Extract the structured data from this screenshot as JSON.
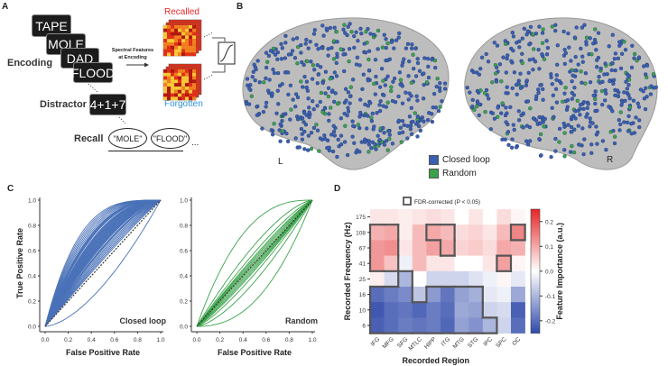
{
  "panel_a": {
    "label": "A",
    "words": [
      "TAPE",
      "MOLE",
      "DAD",
      "FLOOD"
    ],
    "encoding_label": "Encoding",
    "distractor_label": "Distractor",
    "distractor_value": "4+1+7",
    "recall_label": "Recall",
    "recall_responses": [
      "\"MOLE\"",
      "\"FLOOD\""
    ],
    "ellipsis": "...",
    "spectral_line1": "Spectral Features",
    "spectral_line2": "at Encoding",
    "recalled_label": "Recalled",
    "forgotten_label": "Forgotten",
    "colors": {
      "recalled": "#e8262a",
      "forgotten": "#2a8fd6"
    }
  },
  "panel_b": {
    "label": "B",
    "legend": [
      {
        "label": "Closed loop",
        "color": "#3a5fb0"
      },
      {
        "label": "Random",
        "color": "#3aa34a"
      }
    ],
    "left_hemisphere": "L",
    "right_hemisphere": "R"
  },
  "panel_c": {
    "label": "C"
  },
  "panel_d": {
    "label": "D",
    "legend_label": "FDR-corrected (P < 0.05)"
  },
  "chart_data": [
    {
      "type": "line",
      "title": "Closed loop",
      "xlabel": "False Positive Rate",
      "ylabel": "True Positive Rate",
      "xlim": [
        0,
        1
      ],
      "ylim": [
        0,
        1
      ],
      "ticks": [
        "0.0",
        "0.2",
        "0.4",
        "0.6",
        "0.8",
        "1.0"
      ],
      "color": "#4a72b8",
      "auc": [
        0.38,
        0.52,
        0.53,
        0.54,
        0.55,
        0.56,
        0.57,
        0.58,
        0.585,
        0.59,
        0.6,
        0.605,
        0.61,
        0.615,
        0.62,
        0.625,
        0.63,
        0.635,
        0.64,
        0.645,
        0.65,
        0.655,
        0.66,
        0.665,
        0.67,
        0.675,
        0.68,
        0.685,
        0.69,
        0.7,
        0.705,
        0.71,
        0.715,
        0.72,
        0.73,
        0.74,
        0.75,
        0.76,
        0.77,
        0.78
      ],
      "chance_line": true
    },
    {
      "type": "line",
      "title": "Random",
      "xlabel": "False Positive Rate",
      "ylabel": "",
      "xlim": [
        0,
        1
      ],
      "ylim": [
        0,
        1
      ],
      "ticks": [
        "0.0",
        "0.2",
        "0.4",
        "0.6",
        "0.8",
        "1.0"
      ],
      "color": "#3aa34a",
      "auc": [
        0.3,
        0.4,
        0.44,
        0.46,
        0.47,
        0.48,
        0.49,
        0.5,
        0.51,
        0.52,
        0.53,
        0.54,
        0.56,
        0.6,
        0.72
      ],
      "chance_line": true
    },
    {
      "type": "heatmap",
      "xlabel": "Recorded Region",
      "ylabel": "Recorded Frequency (Hz)",
      "colorbar_label": "Feature Importance (a.u.)",
      "colorbar_ticks": [
        "0.2",
        "0.1",
        "0.0",
        "-0.1",
        "-0.2"
      ],
      "clim": [
        -0.25,
        0.25
      ],
      "x": [
        "IFG",
        "MFG",
        "SFG",
        "MTLC",
        "HIPP",
        "ITG",
        "MTG",
        "STG",
        "IPC",
        "SPC",
        "OC"
      ],
      "y": [
        "175",
        "108",
        "67",
        "41",
        "25",
        "16",
        "10",
        "6"
      ],
      "values": [
        [
          0.03,
          0.03,
          0.02,
          0.03,
          0.04,
          0.03,
          0.0,
          0.03,
          0.0,
          0.04,
          0.01
        ],
        [
          0.09,
          0.1,
          0.02,
          0.08,
          0.1,
          0.08,
          0.04,
          0.05,
          0.03,
          0.08,
          0.14
        ],
        [
          0.12,
          0.13,
          0.03,
          0.08,
          0.11,
          0.1,
          0.05,
          0.06,
          0.04,
          0.1,
          0.09
        ],
        [
          0.12,
          0.07,
          -0.02,
          0.08,
          0.03,
          0.03,
          0.0,
          0.0,
          0.03,
          0.11,
          0.01
        ],
        [
          0.02,
          -0.05,
          -0.1,
          0.0,
          -0.06,
          -0.06,
          -0.06,
          -0.04,
          -0.02,
          0.01,
          -0.03
        ],
        [
          -0.2,
          -0.18,
          -0.16,
          -0.08,
          -0.14,
          -0.19,
          -0.13,
          -0.11,
          -0.03,
          -0.02,
          -0.12
        ],
        [
          -0.23,
          -0.2,
          -0.19,
          -0.21,
          -0.18,
          -0.2,
          -0.12,
          -0.13,
          -0.06,
          -0.05,
          -0.22
        ],
        [
          -0.22,
          -0.2,
          -0.18,
          -0.19,
          -0.18,
          -0.21,
          -0.13,
          -0.15,
          -0.1,
          -0.06,
          -0.2
        ]
      ],
      "significant": [
        [
          0,
          0,
          0,
          0,
          0,
          0,
          0,
          0,
          0,
          0,
          0
        ],
        [
          1,
          1,
          0,
          0,
          1,
          1,
          0,
          0,
          0,
          0,
          1
        ],
        [
          1,
          1,
          0,
          0,
          0,
          1,
          0,
          0,
          0,
          0,
          0
        ],
        [
          1,
          1,
          0,
          0,
          0,
          0,
          0,
          0,
          0,
          1,
          0
        ],
        [
          0,
          0,
          1,
          0,
          0,
          0,
          0,
          0,
          0,
          0,
          0
        ],
        [
          1,
          1,
          1,
          0,
          1,
          1,
          1,
          1,
          0,
          0,
          0
        ],
        [
          1,
          1,
          1,
          1,
          1,
          1,
          1,
          1,
          0,
          0,
          0
        ],
        [
          1,
          1,
          1,
          1,
          1,
          1,
          1,
          1,
          1,
          0,
          0
        ]
      ]
    }
  ]
}
